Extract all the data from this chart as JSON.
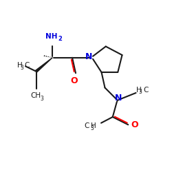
{
  "bg_color": "#ffffff",
  "bond_color": "#1a1a1a",
  "N_color": "#0000dd",
  "O_color": "#ff0000",
  "lw": 1.5,
  "fs": 7.5,
  "fs_sub": 5.5,
  "xlim": [
    0,
    10
  ],
  "ylim": [
    0,
    10
  ]
}
